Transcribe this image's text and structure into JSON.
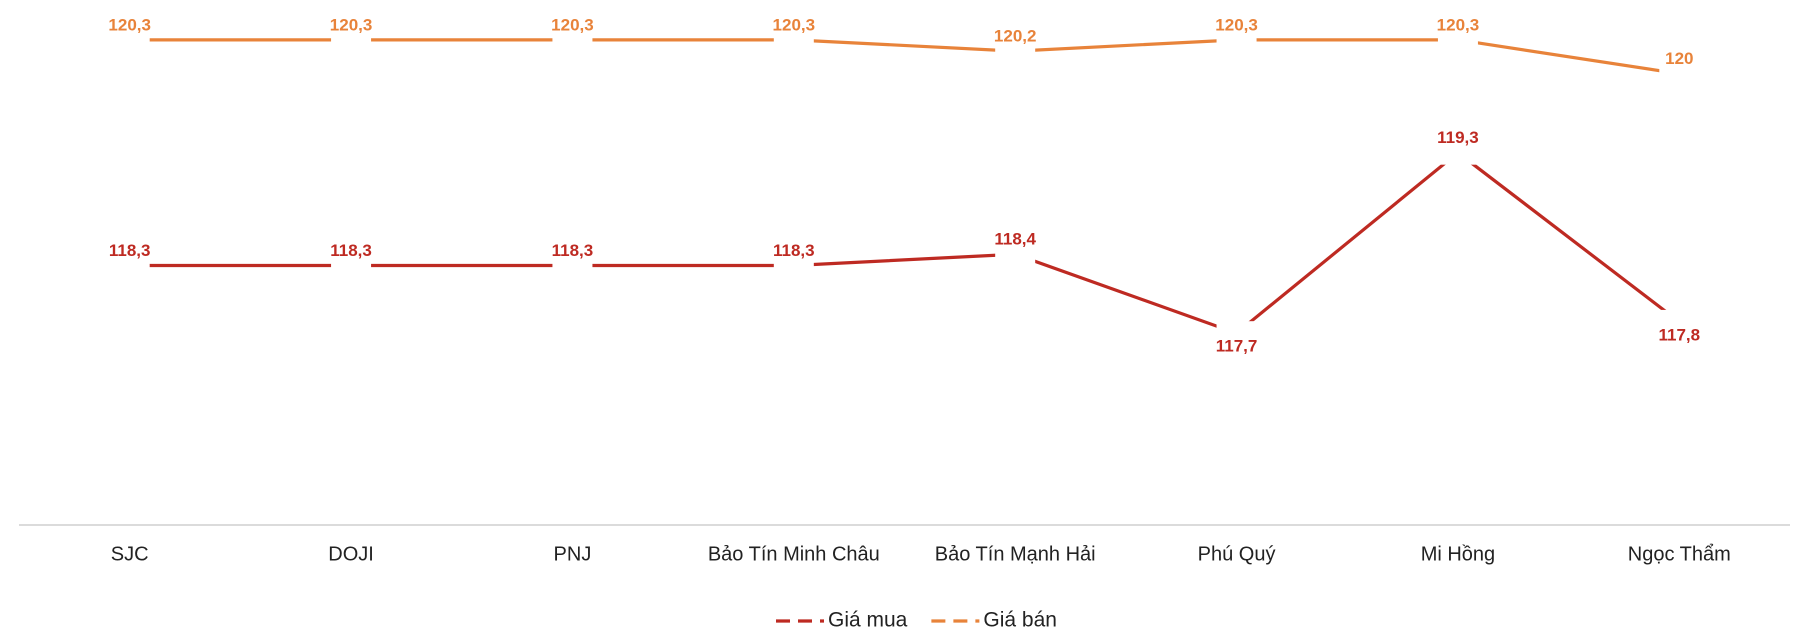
{
  "chart_data": {
    "type": "line",
    "categories": [
      "SJC",
      "DOJI",
      "PNJ",
      "Bảo Tín Minh Châu",
      "Bảo Tín Mạnh Hải",
      "Phú Quý",
      "Mi Hồng",
      "Ngọc Thẩm"
    ],
    "series": [
      {
        "name": "Giá mua",
        "color": "#be2a22",
        "values": [
          118.3,
          118.3,
          118.3,
          118.3,
          118.4,
          117.7,
          119.3,
          117.8
        ],
        "value_labels": [
          "118,3",
          "118,3",
          "118,3",
          "118,3",
          "118,4",
          "117,7",
          "119,3",
          "117,8"
        ]
      },
      {
        "name": "Giá bán",
        "color": "#e8833a",
        "values": [
          120.3,
          120.3,
          120.3,
          120.3,
          120.2,
          120.3,
          120.3,
          120
        ],
        "value_labels": [
          "120,3",
          "120,3",
          "120,3",
          "120,3",
          "120,2",
          "120,3",
          "120,3",
          "120"
        ]
      }
    ],
    "ylim": [
      116,
      120.6
    ]
  }
}
